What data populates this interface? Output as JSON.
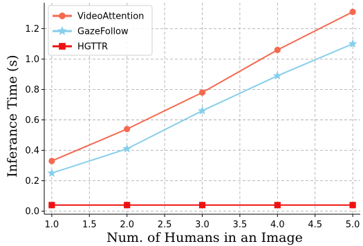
{
  "chart_data": {
    "type": "line",
    "title": "",
    "xlabel": "Num. of Humans in an Image",
    "ylabel": "Inferance Time (s)",
    "x": [
      1.0,
      2.0,
      3.0,
      4.0,
      5.0
    ],
    "xlim": [
      0.9,
      5.1
    ],
    "ylim": [
      -0.02,
      1.37
    ],
    "xticks": [
      1.0,
      1.5,
      2.0,
      2.5,
      3.0,
      3.5,
      4.0,
      4.5,
      5.0
    ],
    "xtick_labels": [
      "1.0",
      "1.5",
      "2.0",
      "2.5",
      "3.0",
      "3.5",
      "4.0",
      "4.5",
      "5.0"
    ],
    "yticks": [
      0.0,
      0.2,
      0.4,
      0.6,
      0.8,
      1.0,
      1.2
    ],
    "ytick_labels": [
      "0.0",
      "0.2",
      "0.4",
      "0.6",
      "0.8",
      "1.0",
      "1.2"
    ],
    "grid": true,
    "legend_position": "top-left",
    "series": [
      {
        "name": "VideoAttention",
        "values": [
          0.33,
          0.54,
          0.78,
          1.06,
          1.31
        ],
        "color": "#f4694f",
        "marker": "circle"
      },
      {
        "name": "GazeFollow",
        "values": [
          0.25,
          0.41,
          0.66,
          0.89,
          1.1
        ],
        "color": "#87ceeb",
        "marker": "star"
      },
      {
        "name": "HGTTR",
        "values": [
          0.04,
          0.04,
          0.04,
          0.04,
          0.04
        ],
        "color": "#ee1111",
        "marker": "square"
      }
    ]
  }
}
